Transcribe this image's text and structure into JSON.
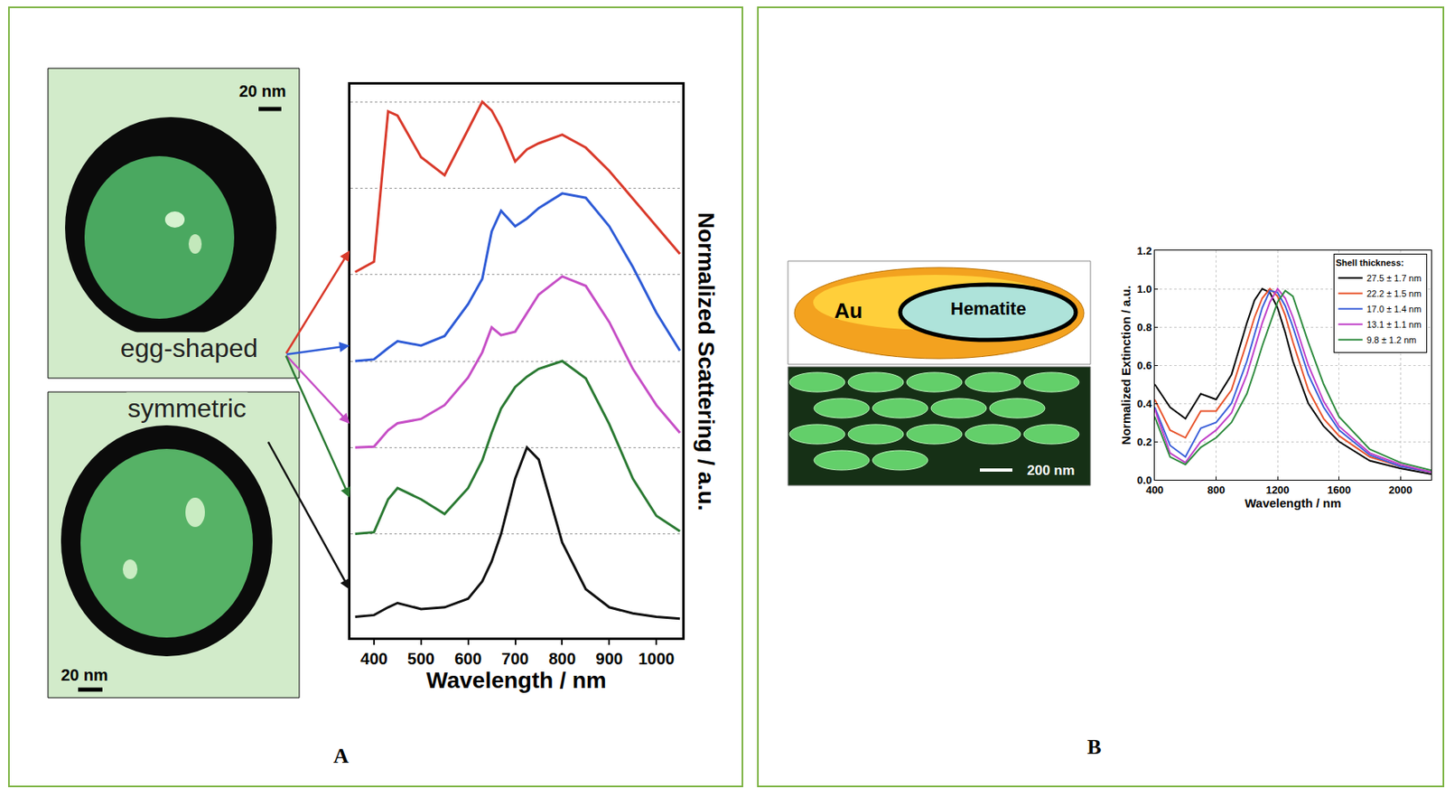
{
  "chart_data": [
    {
      "type": "line",
      "x_label": "Wavelength / nm",
      "y_label": "Normalized Scattering / a.u.",
      "x": [
        360,
        400,
        430,
        450,
        500,
        550,
        600,
        630,
        650,
        670,
        700,
        725,
        750,
        800,
        850,
        900,
        950,
        1000,
        1050
      ],
      "series": [
        {
          "color": "#d93a2b",
          "values": [
            4.03,
            4.15,
            5.89,
            5.84,
            5.36,
            5.15,
            5.68,
            6.0,
            5.9,
            5.7,
            5.31,
            5.45,
            5.52,
            5.62,
            5.47,
            5.2,
            4.88,
            4.56,
            4.24
          ]
        },
        {
          "color": "#2e5bd6",
          "values": [
            3.0,
            3.02,
            3.15,
            3.23,
            3.18,
            3.29,
            3.66,
            3.95,
            4.5,
            4.74,
            4.56,
            4.65,
            4.77,
            4.94,
            4.89,
            4.56,
            4.09,
            3.56,
            3.12
          ]
        },
        {
          "color": "#c64fc6",
          "values": [
            2.0,
            2.01,
            2.2,
            2.28,
            2.33,
            2.49,
            2.81,
            3.1,
            3.39,
            3.3,
            3.34,
            3.55,
            3.77,
            3.98,
            3.87,
            3.45,
            2.91,
            2.49,
            2.17
          ]
        },
        {
          "color": "#2b7a33",
          "values": [
            1.0,
            1.02,
            1.4,
            1.53,
            1.4,
            1.23,
            1.53,
            1.85,
            2.17,
            2.45,
            2.7,
            2.82,
            2.91,
            3.0,
            2.8,
            2.27,
            1.64,
            1.21,
            1.03
          ]
        },
        {
          "color": "#111111",
          "values": [
            0.04,
            0.06,
            0.15,
            0.2,
            0.13,
            0.15,
            0.25,
            0.45,
            0.68,
            1.0,
            1.64,
            2.0,
            1.86,
            0.9,
            0.36,
            0.15,
            0.08,
            0.04,
            0.02
          ]
        }
      ],
      "xlim": [
        350,
        1055
      ],
      "xticks": [
        400,
        500,
        600,
        700,
        800,
        900,
        1000
      ],
      "ylim": [
        -0.2,
        6.2
      ],
      "yticks": [
        1,
        2,
        3,
        4,
        5,
        6
      ],
      "grid": true,
      "tick_labels": "x"
    },
    {
      "type": "line",
      "x_label": "Wavelength / nm",
      "y_label": "Normalized Extinction / a.u.",
      "legend_title": "Shell thickness:",
      "x": [
        400,
        500,
        600,
        700,
        800,
        900,
        1000,
        1050,
        1100,
        1150,
        1200,
        1250,
        1300,
        1400,
        1500,
        1600,
        1800,
        2000,
        2200
      ],
      "series": [
        {
          "name": "27.5 ± 1.7 nm",
          "color": "#000000",
          "values": [
            0.5,
            0.38,
            0.32,
            0.45,
            0.42,
            0.55,
            0.82,
            0.94,
            1.0,
            0.98,
            0.9,
            0.77,
            0.62,
            0.4,
            0.28,
            0.2,
            0.1,
            0.06,
            0.03
          ]
        },
        {
          "name": "22.2 ± 1.5 nm",
          "color": "#e8542c",
          "values": [
            0.42,
            0.26,
            0.22,
            0.36,
            0.36,
            0.47,
            0.72,
            0.85,
            0.95,
            1.0,
            0.96,
            0.86,
            0.72,
            0.47,
            0.32,
            0.23,
            0.12,
            0.07,
            0.04
          ]
        },
        {
          "name": "17.0 ± 1.4 nm",
          "color": "#3a5fd9",
          "values": [
            0.38,
            0.18,
            0.12,
            0.27,
            0.3,
            0.4,
            0.62,
            0.76,
            0.9,
            0.99,
            0.98,
            0.91,
            0.8,
            0.55,
            0.38,
            0.26,
            0.13,
            0.07,
            0.04
          ]
        },
        {
          "name": "13.1 ± 1.1 nm",
          "color": "#c03fc8",
          "values": [
            0.37,
            0.14,
            0.09,
            0.2,
            0.26,
            0.35,
            0.55,
            0.68,
            0.82,
            0.93,
            1.0,
            0.95,
            0.85,
            0.6,
            0.41,
            0.28,
            0.14,
            0.08,
            0.04
          ]
        },
        {
          "name": "9.8 ± 1.2 nm",
          "color": "#2e8b3e",
          "values": [
            0.33,
            0.12,
            0.08,
            0.17,
            0.22,
            0.3,
            0.45,
            0.57,
            0.7,
            0.82,
            0.93,
            0.99,
            0.96,
            0.72,
            0.5,
            0.33,
            0.16,
            0.09,
            0.05
          ]
        }
      ],
      "xlim": [
        400,
        2200
      ],
      "xticks": [
        400,
        800,
        1200,
        1600,
        2000
      ],
      "ylim": [
        0,
        1.2
      ],
      "yticks": [
        {
          "value": 0,
          "label": "0.0"
        },
        0.2,
        0.4,
        0.6,
        0.8,
        {
          "value": 1,
          "label": "1.0"
        },
        1.2
      ],
      "grid": true,
      "legend": "top-right"
    }
  ],
  "panels": [
    {
      "label": "A",
      "images": [
        {
          "caption": "egg-shaped",
          "scale_bar": "20 nm",
          "points_to": [
            0,
            1,
            2,
            3
          ]
        },
        {
          "caption": "symmetric",
          "scale_bar": "20 nm",
          "points_to": [
            4
          ]
        }
      ]
    },
    {
      "label": "B",
      "schematic": [
        "Au",
        "Hematite"
      ],
      "images": [
        {
          "scale_bar": "200 nm"
        }
      ]
    }
  ]
}
